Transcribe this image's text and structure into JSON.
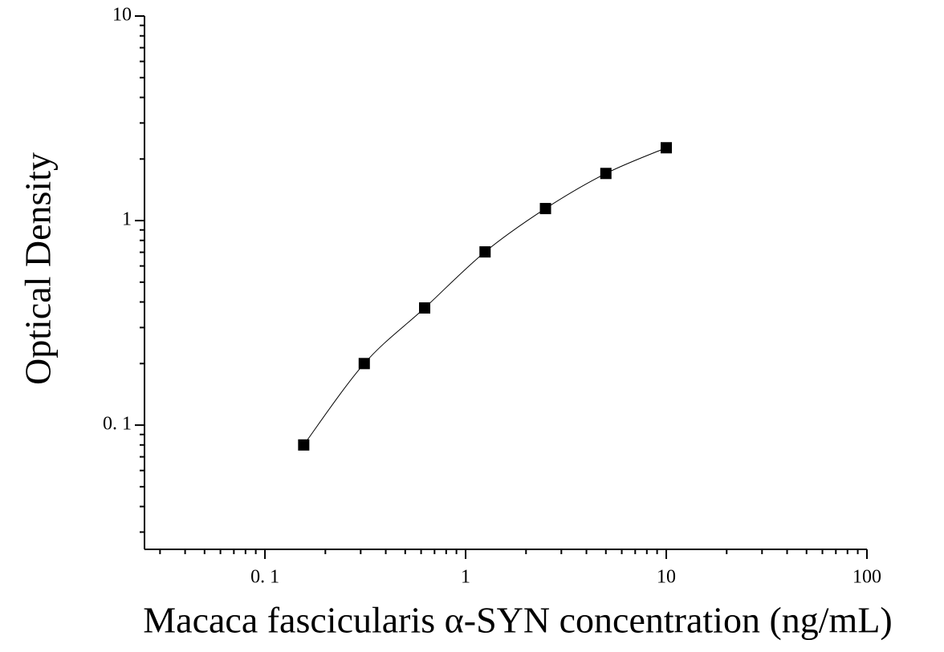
{
  "chart_data": {
    "type": "scatter",
    "xlabel": "Macaca fascicularis α-SYN concentration (ng/mL)",
    "ylabel": "Optical Density",
    "xscale": "log",
    "yscale": "log",
    "xlim": [
      0.0251,
      100
    ],
    "ylim": [
      0.0247,
      10
    ],
    "xticks": [
      {
        "value": 0.1,
        "label": "0. 1"
      },
      1,
      10,
      100
    ],
    "yticks": [
      {
        "value": 0.1,
        "label": "0. 1"
      },
      1,
      10
    ],
    "fit_line": true,
    "series": [
      {
        "color": "#000000",
        "x": [
          0.156,
          0.3125,
          0.625,
          1.25,
          2.5,
          5,
          10
        ],
        "values": [
          0.08,
          0.2,
          0.374,
          0.703,
          1.145,
          1.7,
          2.27
        ]
      }
    ]
  }
}
